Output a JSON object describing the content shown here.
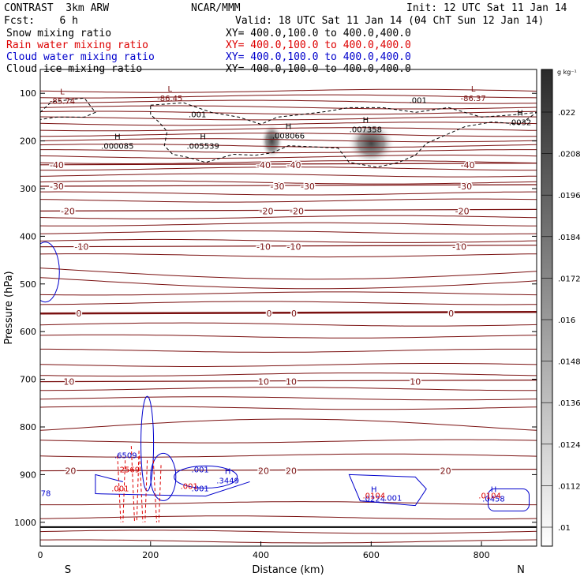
{
  "header": {
    "model": "CONTRAST  3km ARW",
    "center": "NCAR/MMM",
    "init": "Init: 12 UTC Sat 11 Jan 14",
    "fcst": "Fcst:    6 h",
    "valid": "Valid: 18 UTC Sat 11 Jan 14 (04 ChT Sun 12 Jan 14)",
    "rows": [
      {
        "name": "Snow mixing ratio",
        "xy": "XY= 400.0,100.0 to 400.0,400.0",
        "color": "#000000"
      },
      {
        "name": "Rain water mixing ratio",
        "xy": "XY= 400.0,100.0 to 400.0,400.0",
        "color": "#dd0000"
      },
      {
        "name": "Cloud water mixing ratio",
        "xy": "XY= 400.0,100.0 to 400.0,400.0",
        "color": "#0000cc"
      },
      {
        "name": "Cloud ice mixing ratio",
        "xy": "XY= 400.0,100.0 to 400.0,400.0",
        "color": "#000000"
      }
    ]
  },
  "chart_data": {
    "type": "contour cross-section",
    "xlabel": "Distance (km)",
    "ylabel": "Pressure (hPa)",
    "xlim": [
      0,
      900
    ],
    "ylim": [
      1050,
      50
    ],
    "xticks": [
      0,
      200,
      400,
      600,
      800
    ],
    "yticks": [
      100,
      200,
      300,
      400,
      500,
      600,
      700,
      800,
      900,
      1000
    ],
    "x_end_labels": {
      "left": "S",
      "right": "N"
    },
    "temperature_contours": [
      {
        "label": "-40",
        "p": 250,
        "labels_at": [
          30,
          405,
          460,
          775
        ]
      },
      {
        "label": "-30",
        "p": 295,
        "labels_at": [
          30,
          430,
          485,
          770
        ]
      },
      {
        "label": "-20",
        "p": 347,
        "labels_at": [
          50,
          410,
          465,
          765
        ]
      },
      {
        "label": "-10",
        "p": 422,
        "labels_at": [
          75,
          405,
          460,
          760
        ]
      },
      {
        "label": "0",
        "p": 562,
        "labels_at": [
          70,
          415,
          460,
          745
        ]
      },
      {
        "label": "10",
        "p": 705,
        "labels_at": [
          52,
          405,
          455,
          680
        ]
      },
      {
        "label": "20",
        "p": 892,
        "labels_at": [
          55,
          405,
          455,
          735
        ]
      }
    ],
    "extrema_labels": [
      {
        "type": "L",
        "value": "-85.74",
        "x": 40,
        "p": 115
      },
      {
        "type": "L",
        "value": "-86.45",
        "x": 235,
        "p": 110
      },
      {
        "type": "L",
        "value": "-86.37",
        "x": 785,
        "p": 110
      },
      {
        "type": "H",
        "value": ".000085",
        "x": 140,
        "p": 210
      },
      {
        "type": "H",
        "value": ".005539",
        "x": 295,
        "p": 210
      },
      {
        "type": "H",
        "value": ".008066",
        "x": 450,
        "p": 188
      },
      {
        "type": "H",
        "value": ".007358",
        "x": 590,
        "p": 175
      },
      {
        "type": "H",
        "value": ".0032",
        "x": 870,
        "p": 160
      },
      {
        "type": "H",
        "value": ".3449",
        "x": 340,
        "p": 912
      },
      {
        "type": "H",
        "value": ".0224",
        "x": 605,
        "p": 950
      },
      {
        "type": "H",
        "value": ".0458",
        "x": 822,
        "p": 950
      }
    ],
    "other_contour_labels": [
      {
        "value": ".001",
        "x": 285,
        "p": 150,
        "color": "#000000"
      },
      {
        "value": ".001",
        "x": 685,
        "p": 120,
        "color": "#000000"
      },
      {
        "value": ".001",
        "x": 290,
        "p": 895,
        "color": "#0000cc"
      },
      {
        "value": ".001",
        "x": 290,
        "p": 935,
        "color": "#0000cc"
      },
      {
        "value": ".001",
        "x": 640,
        "p": 955,
        "color": "#0000cc"
      },
      {
        "value": ".001",
        "x": 145,
        "p": 935,
        "color": "#dd0000"
      },
      {
        "value": ".001",
        "x": 270,
        "p": 930,
        "color": "#dd0000"
      },
      {
        "value": ".6509",
        "x": 155,
        "p": 865,
        "color": "#0000cc"
      },
      {
        "value": ".2569",
        "x": 160,
        "p": 895,
        "color": "#dd0000"
      },
      {
        "value": ".0104",
        "x": 815,
        "p": 950,
        "color": "#dd0000"
      },
      {
        "value": ".0104",
        "x": 605,
        "p": 950,
        "color": "#dd0000"
      },
      {
        "value": "78",
        "x": 10,
        "p": 945,
        "color": "#0000cc"
      }
    ],
    "snow_shading_maxima": [
      {
        "x": 420,
        "p": 200
      },
      {
        "x": 600,
        "p": 205
      }
    ],
    "colorbar": {
      "unit": "g kg⁻¹",
      "levels": [
        ".022",
        ".0208",
        ".0196",
        ".0184",
        ".0172",
        ".016",
        ".0148",
        ".0136",
        ".0124",
        ".0112",
        ".01"
      ]
    }
  }
}
